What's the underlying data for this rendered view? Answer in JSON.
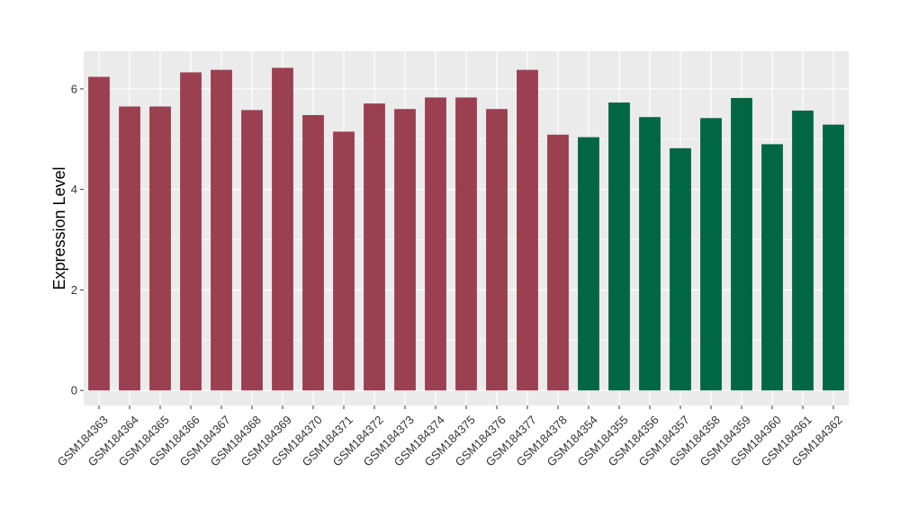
{
  "chart_data": {
    "type": "bar",
    "title": "",
    "xlabel": "",
    "ylabel": "Expression Level",
    "ylim": [
      -0.3,
      6.75
    ],
    "yticks": [
      0,
      2,
      4,
      6
    ],
    "grid": true,
    "legend": "none",
    "categories": [
      "GSM184363",
      "GSM184364",
      "GSM184365",
      "GSM184366",
      "GSM184367",
      "GSM184368",
      "GSM184369",
      "GSM184370",
      "GSM184371",
      "GSM184372",
      "GSM184373",
      "GSM184374",
      "GSM184375",
      "GSM184376",
      "GSM184377",
      "GSM184378",
      "GSM184354",
      "GSM184355",
      "GSM184356",
      "GSM184357",
      "GSM184358",
      "GSM184359",
      "GSM184360",
      "GSM184361",
      "GSM184362"
    ],
    "values": [
      6.24,
      5.65,
      5.65,
      6.33,
      6.38,
      5.58,
      6.42,
      5.48,
      5.15,
      5.71,
      5.6,
      5.83,
      5.83,
      5.6,
      6.38,
      5.09,
      5.04,
      5.73,
      5.44,
      4.82,
      5.42,
      5.82,
      4.9,
      5.57,
      5.29
    ],
    "group_colors": [
      "#9a4050",
      "#006644",
      "#006644"
    ],
    "bar_groups": [
      0,
      0,
      0,
      0,
      0,
      0,
      0,
      0,
      0,
      0,
      0,
      0,
      0,
      0,
      0,
      0,
      1,
      1,
      1,
      1,
      1,
      1,
      1,
      1,
      1
    ],
    "panel_background": "#ebebeb",
    "grid_color": "#ffffff"
  }
}
